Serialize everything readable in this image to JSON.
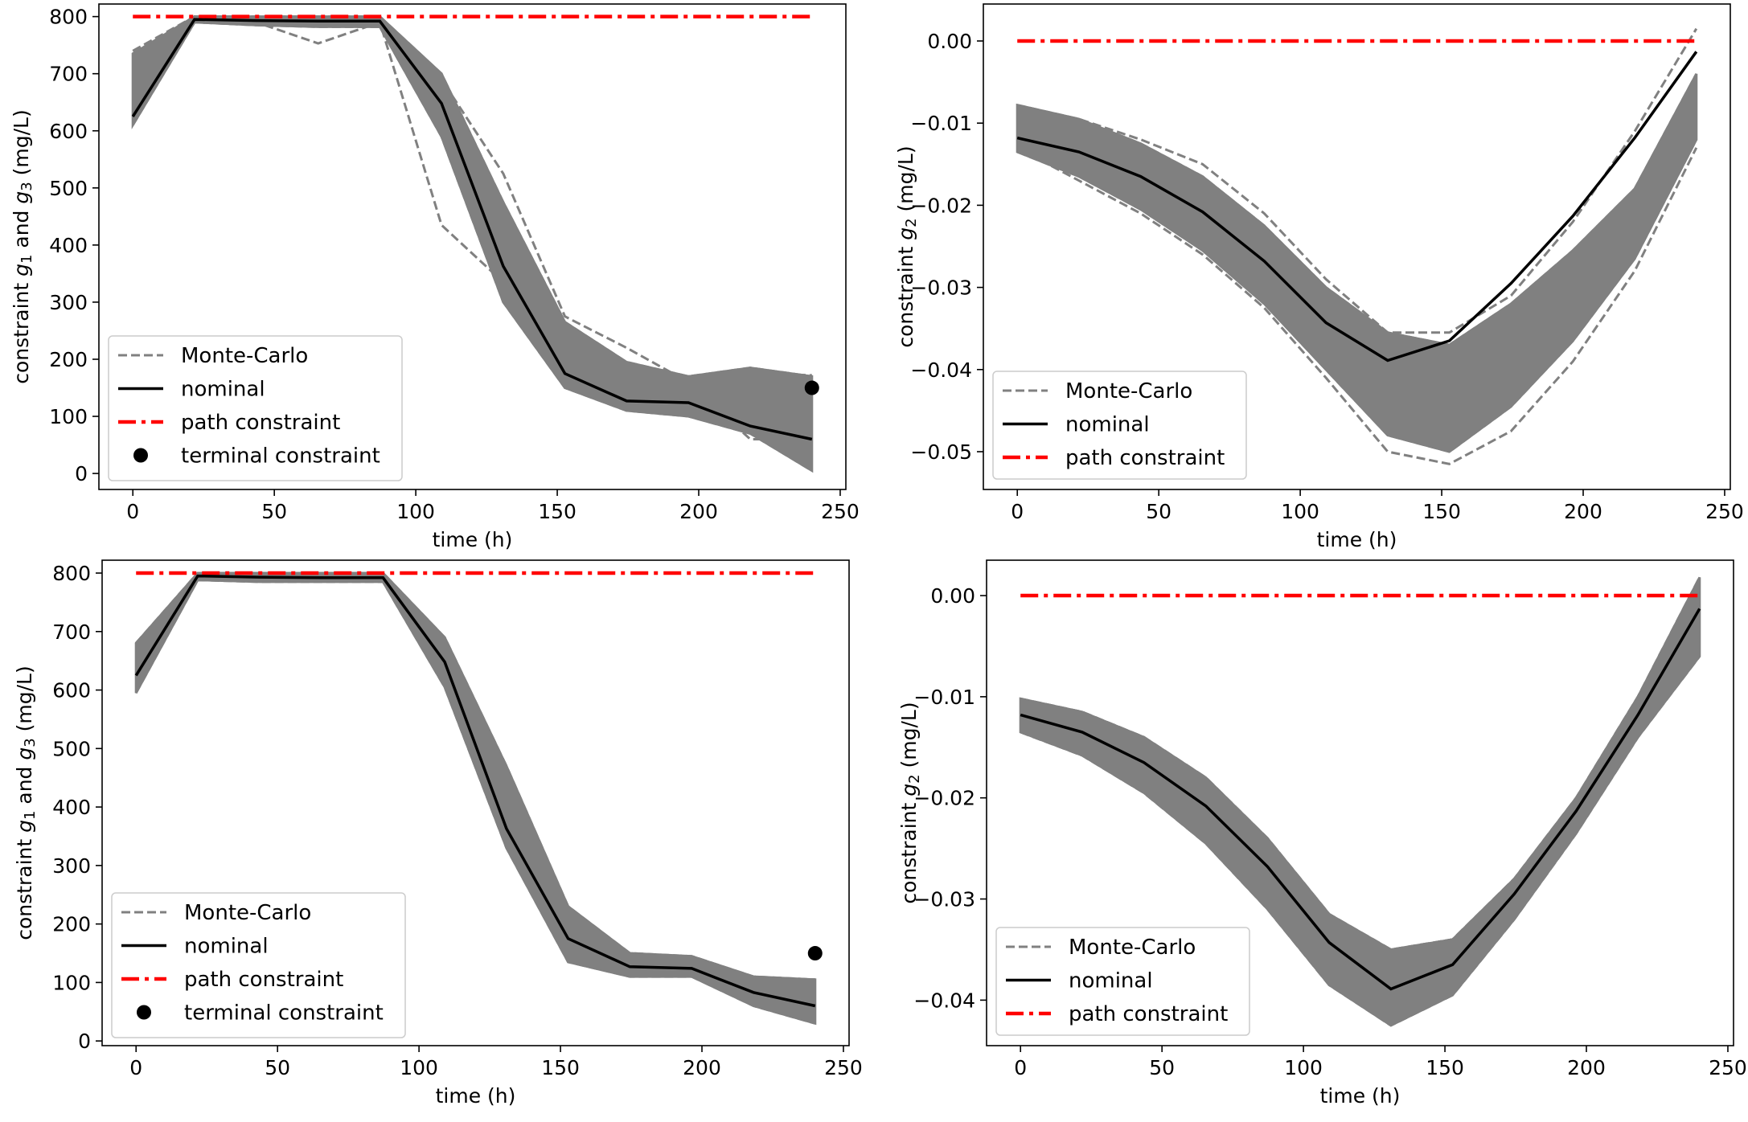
{
  "colors": {
    "monte_carlo": "#808080",
    "nominal": "#000000",
    "path": "#ff0000",
    "terminal": "#000000",
    "band": "#808080"
  },
  "chart_data": [
    {
      "id": "top-left",
      "type": "line",
      "xlabel": "time (h)",
      "ylabel": [
        "constraint ",
        "g",
        "1",
        " and ",
        "g",
        "3",
        " (mg/L)"
      ],
      "xlim": [
        -12,
        252
      ],
      "ylim": [
        -28,
        822
      ],
      "xticks": [
        0,
        50,
        100,
        150,
        200,
        250
      ],
      "xtick_labels": [
        "0",
        "50",
        "100",
        "150",
        "200",
        "250"
      ],
      "yticks": [
        0,
        100,
        200,
        300,
        400,
        500,
        600,
        700,
        800
      ],
      "ytick_labels": [
        "0",
        "100",
        "200",
        "300",
        "400",
        "500",
        "600",
        "700",
        "800"
      ],
      "time_grid": [
        0,
        21.8,
        43.6,
        65.5,
        87.3,
        109.1,
        130.9,
        152.7,
        174.5,
        196.4,
        218.2,
        240
      ],
      "nominal": [
        625,
        795,
        793,
        792,
        792,
        648,
        363,
        175,
        127,
        124,
        83,
        60
      ],
      "band_upper": [
        735,
        800,
        800,
        800,
        800,
        700,
        475,
        265,
        195,
        170,
        185,
        170
      ],
      "band_lower": [
        610,
        790,
        785,
        782,
        782,
        590,
        300,
        150,
        110,
        100,
        70,
        5
      ],
      "monte_carlo_outliers": [
        [
          740,
          800,
          790,
          753,
          790,
          435,
          335,
          215,
          175,
          170,
          175,
          172
        ],
        [
          705,
          800,
          798,
          790,
          795,
          690,
          525,
          275,
          220,
          160,
          60,
          60
        ]
      ],
      "path_constraint": {
        "value": 800,
        "x": [
          0,
          240
        ]
      },
      "terminal_constraint": {
        "x": 240,
        "y": 150
      },
      "legend": [
        "Monte-Carlo",
        "nominal",
        "path constraint",
        "terminal constraint"
      ],
      "legend_loc": "lower-left"
    },
    {
      "id": "top-right",
      "type": "line",
      "xlabel": "time (h)",
      "ylabel": [
        "constraint ",
        "g",
        "2",
        " (mg/L)"
      ],
      "xlim": [
        -12,
        252
      ],
      "ylim": [
        -0.0546,
        0.0045
      ],
      "xticks": [
        0,
        50,
        100,
        150,
        200,
        250
      ],
      "xtick_labels": [
        "0",
        "50",
        "100",
        "150",
        "200",
        "250"
      ],
      "yticks": [
        0,
        -0.01,
        -0.02,
        -0.03,
        -0.04,
        -0.05
      ],
      "ytick_labels": [
        "0.00",
        "−0.01",
        "−0.02",
        "−0.03",
        "−0.04",
        "−0.05"
      ],
      "time_grid": [
        0,
        21.8,
        43.6,
        65.5,
        87.3,
        109.1,
        130.9,
        152.7,
        174.5,
        196.4,
        218.2,
        240
      ],
      "nominal": [
        -0.0118,
        -0.0135,
        -0.0165,
        -0.0208,
        -0.0268,
        -0.0343,
        -0.0389,
        -0.0365,
        -0.0295,
        -0.0213,
        -0.0118,
        -0.0013
      ],
      "band_upper": [
        -0.0078,
        -0.0095,
        -0.0125,
        -0.0165,
        -0.0225,
        -0.03,
        -0.0355,
        -0.037,
        -0.032,
        -0.0255,
        -0.018,
        -0.004
      ],
      "band_lower": [
        -0.0135,
        -0.0165,
        -0.0205,
        -0.0255,
        -0.032,
        -0.04,
        -0.048,
        -0.05,
        -0.0445,
        -0.0365,
        -0.0265,
        -0.012
      ],
      "monte_carlo_outliers": [
        [
          -0.008,
          -0.0095,
          -0.012,
          -0.015,
          -0.021,
          -0.029,
          -0.0355,
          -0.0355,
          -0.031,
          -0.022,
          -0.011,
          0.0015
        ],
        [
          -0.013,
          -0.017,
          -0.021,
          -0.026,
          -0.0325,
          -0.041,
          -0.05,
          -0.0515,
          -0.0475,
          -0.039,
          -0.028,
          -0.013
        ]
      ],
      "path_constraint": {
        "value": 0.0,
        "x": [
          0,
          240
        ]
      },
      "legend": [
        "Monte-Carlo",
        "nominal",
        "path constraint"
      ],
      "legend_loc": "lower-left"
    },
    {
      "id": "bottom-left",
      "type": "line",
      "xlabel": "time (h)",
      "ylabel": [
        "constraint ",
        "g",
        "1",
        " and ",
        "g",
        "3",
        " (mg/L)"
      ],
      "xlim": [
        -12,
        252
      ],
      "ylim": [
        -8,
        822
      ],
      "xticks": [
        0,
        50,
        100,
        150,
        200,
        250
      ],
      "xtick_labels": [
        "0",
        "50",
        "100",
        "150",
        "200",
        "250"
      ],
      "yticks": [
        0,
        100,
        200,
        300,
        400,
        500,
        600,
        700,
        800
      ],
      "ytick_labels": [
        "0",
        "100",
        "200",
        "300",
        "400",
        "500",
        "600",
        "700",
        "800"
      ],
      "time_grid": [
        0,
        21.8,
        43.6,
        65.5,
        87.3,
        109.1,
        130.9,
        152.7,
        174.5,
        196.4,
        218.2,
        240
      ],
      "nominal": [
        625,
        795,
        793,
        792,
        792,
        648,
        363,
        175,
        127,
        124,
        83,
        60
      ],
      "band_upper": [
        680,
        800,
        800,
        800,
        800,
        690,
        470,
        230,
        150,
        145,
        110,
        105
      ],
      "band_lower": [
        595,
        788,
        785,
        785,
        785,
        605,
        330,
        135,
        110,
        110,
        60,
        30
      ],
      "monte_carlo_outliers": [
        [
          680,
          800,
          800,
          800,
          798,
          680,
          420,
          230,
          140,
          140,
          100,
          105
        ]
      ],
      "path_constraint": {
        "value": 800,
        "x": [
          0,
          240
        ]
      },
      "terminal_constraint": {
        "x": 240,
        "y": 150
      },
      "legend": [
        "Monte-Carlo",
        "nominal",
        "path constraint",
        "terminal constraint"
      ],
      "legend_loc": "lower-left"
    },
    {
      "id": "bottom-right",
      "type": "line",
      "xlabel": "time (h)",
      "ylabel": [
        "constraint ",
        "g",
        "2",
        " (mg/L)"
      ],
      "xlim": [
        -12,
        252
      ],
      "ylim": [
        -0.0445,
        0.0035
      ],
      "xticks": [
        0,
        50,
        100,
        150,
        200,
        250
      ],
      "xtick_labels": [
        "0",
        "50",
        "100",
        "150",
        "200",
        "250"
      ],
      "yticks": [
        0,
        -0.01,
        -0.02,
        -0.03,
        -0.04
      ],
      "ytick_labels": [
        "0.00",
        "−0.01",
        "−0.02",
        "−0.03",
        "−0.04"
      ],
      "time_grid": [
        0,
        21.8,
        43.6,
        65.5,
        87.3,
        109.1,
        130.9,
        152.7,
        174.5,
        196.4,
        218.2,
        240
      ],
      "nominal": [
        -0.0118,
        -0.0135,
        -0.0165,
        -0.0208,
        -0.0268,
        -0.0343,
        -0.0389,
        -0.0365,
        -0.0295,
        -0.0213,
        -0.0118,
        -0.0013
      ],
      "band_upper": [
        -0.0102,
        -0.0115,
        -0.014,
        -0.018,
        -0.024,
        -0.0315,
        -0.035,
        -0.034,
        -0.028,
        -0.02,
        -0.01,
        0.0018
      ],
      "band_lower": [
        -0.0135,
        -0.0158,
        -0.0195,
        -0.0245,
        -0.031,
        -0.0385,
        -0.0425,
        -0.0395,
        -0.032,
        -0.0235,
        -0.014,
        -0.006
      ],
      "monte_carlo_outliers": [
        [
          -0.0102,
          -0.0115,
          -0.014,
          -0.018,
          -0.024,
          -0.0315,
          -0.035,
          -0.034,
          -0.028,
          -0.02,
          -0.01,
          0.0018
        ],
        [
          -0.0135,
          -0.0158,
          -0.0195,
          -0.0245,
          -0.031,
          -0.0385,
          -0.0425,
          -0.0395,
          -0.032,
          -0.0235,
          -0.014,
          -0.006
        ]
      ],
      "path_constraint": {
        "value": 0.0,
        "x": [
          0,
          240
        ]
      },
      "legend": [
        "Monte-Carlo",
        "nominal",
        "path constraint"
      ],
      "legend_loc": "lower-left"
    }
  ]
}
